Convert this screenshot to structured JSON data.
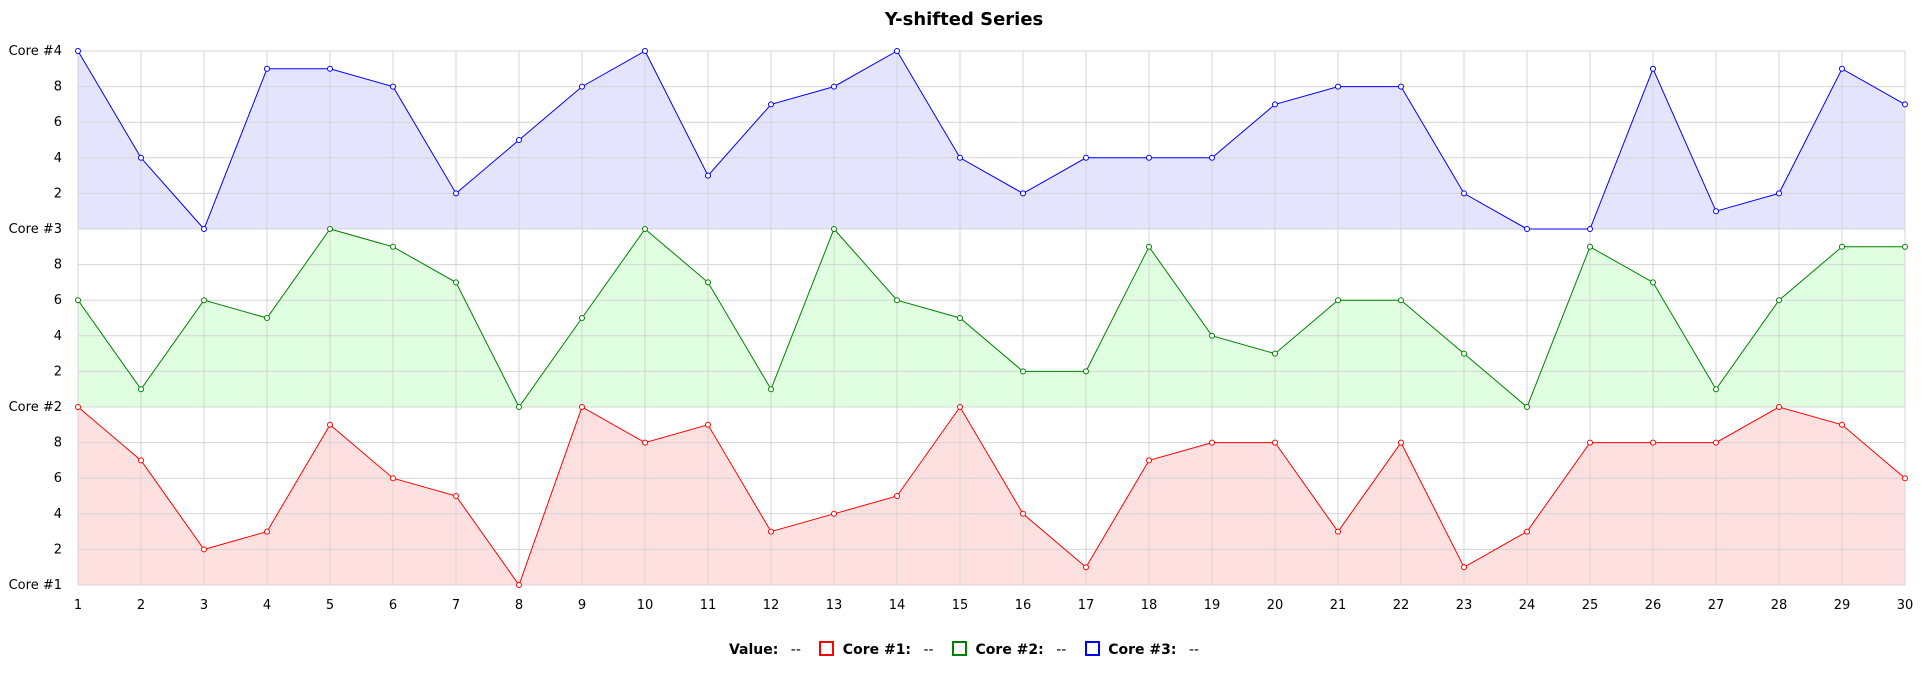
{
  "chart_data": {
    "type": "area",
    "title": "Y-shifted Series",
    "x": [
      1,
      2,
      3,
      4,
      5,
      6,
      7,
      8,
      9,
      10,
      11,
      12,
      13,
      14,
      15,
      16,
      17,
      18,
      19,
      20,
      21,
      22,
      23,
      24,
      25,
      26,
      27,
      28,
      29,
      30
    ],
    "band_ylim": [
      0,
      10
    ],
    "band_yticks": [
      2,
      4,
      6,
      8
    ],
    "band_boundary_labels": [
      "Core #1",
      "Core #2",
      "Core #3",
      "Core #4"
    ],
    "grid": true,
    "series": [
      {
        "name": "Core #1",
        "color": "#ff0000",
        "fill": "#ffe0e0",
        "values": [
          10,
          7,
          2,
          3,
          9,
          6,
          5,
          0,
          10,
          8,
          9,
          3,
          4,
          5,
          10,
          4,
          1,
          7,
          8,
          8,
          3,
          8,
          1,
          3,
          8,
          8,
          8,
          10,
          9,
          6
        ]
      },
      {
        "name": "Core #2",
        "color": "#008000",
        "fill": "#e0ffe0",
        "values": [
          6,
          1,
          6,
          5,
          10,
          9,
          7,
          0,
          5,
          10,
          7,
          1,
          10,
          6,
          5,
          2,
          2,
          9,
          4,
          3,
          6,
          6,
          3,
          0,
          9,
          7,
          1,
          6,
          9,
          9
        ]
      },
      {
        "name": "Core #3",
        "color": "#0000ff",
        "fill": "#e4e4ff",
        "values": [
          10,
          4,
          0,
          9,
          9,
          8,
          2,
          5,
          8,
          10,
          3,
          7,
          8,
          10,
          4,
          2,
          4,
          4,
          4,
          7,
          8,
          8,
          2,
          0,
          0,
          9,
          1,
          2,
          9,
          7
        ]
      }
    ]
  },
  "legend": {
    "value_label": "Value:",
    "value_text": "--",
    "items": [
      {
        "label": "Core #1:",
        "value": "--",
        "color": "#ff0000"
      },
      {
        "label": "Core #2:",
        "value": "--",
        "color": "#008000"
      },
      {
        "label": "Core #3:",
        "value": "--",
        "color": "#0000ff"
      }
    ]
  }
}
